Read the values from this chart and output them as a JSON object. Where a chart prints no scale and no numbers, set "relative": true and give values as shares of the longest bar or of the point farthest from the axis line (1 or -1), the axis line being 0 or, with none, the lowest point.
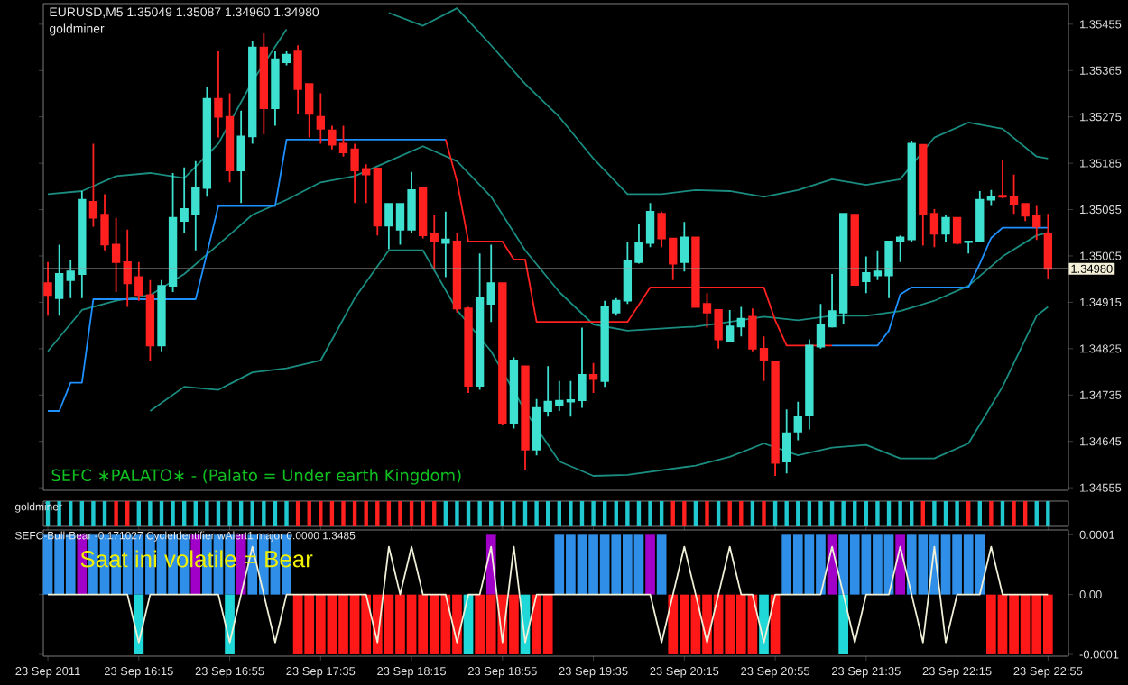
{
  "chart_data": [
    {
      "type": "candlestick",
      "title": "EURUSD,M5 1.35049 1.35087 1.34960 1.34980",
      "subtitle": "goldminer",
      "annotations": [
        "SEFC ∗PALATO∗ - (Palato = Under earth Kingdom)"
      ],
      "x": [
        "2011-09-23T15:35",
        "2011-09-23T15:40",
        "2011-09-23T15:45",
        "2011-09-23T15:50",
        "2011-09-23T15:55",
        "2011-09-23T16:00",
        "2011-09-23T16:05",
        "2011-09-23T16:10",
        "2011-09-23T16:15",
        "2011-09-23T16:20",
        "2011-09-23T16:25",
        "2011-09-23T16:30",
        "2011-09-23T16:35",
        "2011-09-23T16:40",
        "2011-09-23T16:45",
        "2011-09-23T16:50",
        "2011-09-23T16:55",
        "2011-09-23T17:00",
        "2011-09-23T17:05",
        "2011-09-23T17:10",
        "2011-09-23T17:15",
        "2011-09-23T17:20",
        "2011-09-23T17:25",
        "2011-09-23T17:30",
        "2011-09-23T17:35",
        "2011-09-23T17:40",
        "2011-09-23T17:45",
        "2011-09-23T17:50",
        "2011-09-23T17:55",
        "2011-09-23T18:00",
        "2011-09-23T18:05",
        "2011-09-23T18:10",
        "2011-09-23T18:15",
        "2011-09-23T18:20",
        "2011-09-23T18:25",
        "2011-09-23T18:30",
        "2011-09-23T18:35",
        "2011-09-23T18:40",
        "2011-09-23T18:45",
        "2011-09-23T18:50",
        "2011-09-23T18:55",
        "2011-09-23T19:00",
        "2011-09-23T19:05",
        "2011-09-23T19:10",
        "2011-09-23T19:15",
        "2011-09-23T19:20",
        "2011-09-23T19:25",
        "2011-09-23T19:30",
        "2011-09-23T19:35",
        "2011-09-23T19:40",
        "2011-09-23T19:45",
        "2011-09-23T19:50",
        "2011-09-23T19:55",
        "2011-09-23T20:00",
        "2011-09-23T20:05",
        "2011-09-23T20:10",
        "2011-09-23T20:15",
        "2011-09-23T20:20",
        "2011-09-23T20:25",
        "2011-09-23T20:30",
        "2011-09-23T20:35",
        "2011-09-23T20:40",
        "2011-09-23T20:45",
        "2011-09-23T20:50",
        "2011-09-23T20:55",
        "2011-09-23T21:00",
        "2011-09-23T21:05",
        "2011-09-23T21:10",
        "2011-09-23T21:15",
        "2011-09-23T21:20",
        "2011-09-23T21:25",
        "2011-09-23T21:30",
        "2011-09-23T21:35",
        "2011-09-23T21:40",
        "2011-09-23T21:45",
        "2011-09-23T21:50",
        "2011-09-23T21:55",
        "2011-09-23T22:00",
        "2011-09-23T22:05",
        "2011-09-23T22:10",
        "2011-09-23T22:15",
        "2011-09-23T22:20",
        "2011-09-23T22:25",
        "2011-09-23T22:30",
        "2011-09-23T22:35",
        "2011-09-23T22:40",
        "2011-09-23T22:45",
        "2011-09-23T22:50",
        "2011-09-23T22:55"
      ],
      "ohlc": [
        [
          1.34952,
          1.34993,
          1.34889,
          1.34929
        ],
        [
          1.34923,
          1.35027,
          1.34889,
          1.3497
        ],
        [
          1.34958,
          1.34998,
          1.34923,
          1.34975
        ],
        [
          1.3497,
          1.35131,
          1.34923,
          1.35114
        ],
        [
          1.3511,
          1.35223,
          1.35062,
          1.35079
        ],
        [
          1.35085,
          1.35125,
          1.35016,
          1.35027
        ],
        [
          1.35027,
          1.35079,
          1.34935,
          1.34993
        ],
        [
          1.34993,
          1.35056,
          1.34906,
          1.34952
        ],
        [
          1.34964,
          1.34993,
          1.34918,
          1.34929
        ],
        [
          1.34929,
          1.34958,
          1.34802,
          1.34831
        ],
        [
          1.34831,
          1.34958,
          1.3482,
          1.34947
        ],
        [
          1.34947,
          1.35166,
          1.34935,
          1.35079
        ],
        [
          1.35073,
          1.35177,
          1.3505,
          1.35096
        ],
        [
          1.35087,
          1.35189,
          1.35016,
          1.35137
        ],
        [
          1.35137,
          1.35333,
          1.3512,
          1.3531
        ],
        [
          1.3531,
          1.35402,
          1.35235,
          1.35275
        ],
        [
          1.35275,
          1.35321,
          1.35148,
          1.35171
        ],
        [
          1.35171,
          1.35287,
          1.35108,
          1.35237
        ],
        [
          1.35237,
          1.35422,
          1.35223,
          1.3541
        ],
        [
          1.3541,
          1.35437,
          1.35241,
          1.35292
        ],
        [
          1.35292,
          1.35402,
          1.35258,
          1.35387
        ],
        [
          1.35381,
          1.35402,
          1.35375,
          1.35396
        ],
        [
          1.35402,
          1.35414,
          1.35281,
          1.35329
        ],
        [
          1.35339,
          1.35339,
          1.35235,
          1.35281
        ],
        [
          1.35275,
          1.35321,
          1.35223,
          1.35252
        ],
        [
          1.35249,
          1.35258,
          1.35212,
          1.35221
        ],
        [
          1.35223,
          1.35258,
          1.35198,
          1.35206
        ],
        [
          1.35212,
          1.35223,
          1.35108,
          1.35171
        ],
        [
          1.35174,
          1.35183,
          1.35108,
          1.35163
        ],
        [
          1.35175,
          1.35177,
          1.35045,
          1.35064
        ],
        [
          1.35064,
          1.35108,
          1.35018,
          1.35106
        ],
        [
          1.35056,
          1.35108,
          1.35027,
          1.35106
        ],
        [
          1.35056,
          1.35168,
          1.3505,
          1.35133
        ],
        [
          1.35137,
          1.35137,
          1.35039,
          1.35045
        ],
        [
          1.35047,
          1.35085,
          1.34981,
          1.35033
        ],
        [
          1.3503,
          1.35091,
          1.34964,
          1.35037
        ],
        [
          1.35033,
          1.3505,
          1.34895,
          1.34903
        ],
        [
          1.34903,
          1.34906,
          1.34739,
          1.34753
        ],
        [
          1.34753,
          1.3501,
          1.34745,
          1.34923
        ],
        [
          1.34912,
          1.35027,
          1.34877,
          1.34952
        ],
        [
          1.34952,
          1.34952,
          1.34676,
          1.34681
        ],
        [
          1.34681,
          1.34808,
          1.3467,
          1.34802
        ],
        [
          1.34791,
          1.34791,
          1.34589,
          1.34629
        ],
        [
          1.34629,
          1.34727,
          1.34618,
          1.3471
        ],
        [
          1.34704,
          1.34791,
          1.34693,
          1.34722
        ],
        [
          1.34716,
          1.34762,
          1.34704,
          1.34724
        ],
        [
          1.34722,
          1.34762,
          1.34693,
          1.34725
        ],
        [
          1.34725,
          1.34866,
          1.3471,
          1.34774
        ],
        [
          1.34774,
          1.34797,
          1.34739,
          1.34766
        ],
        [
          1.34762,
          1.34918,
          1.34751,
          1.34906
        ],
        [
          1.34895,
          1.34923,
          1.34889,
          1.34918
        ],
        [
          1.34918,
          1.35033,
          1.34912,
          1.34995
        ],
        [
          1.34993,
          1.35068,
          1.3499,
          1.3503
        ],
        [
          1.3503,
          1.35108,
          1.35022,
          1.35091
        ],
        [
          1.35087,
          1.35091,
          1.35022,
          1.35039
        ],
        [
          1.35039,
          1.35039,
          1.34958,
          1.3499
        ],
        [
          1.34993,
          1.35071,
          1.34975,
          1.35041
        ],
        [
          1.35041,
          1.35041,
          1.34906,
          1.34906
        ],
        [
          1.34912,
          1.34933,
          1.34866,
          1.34895
        ],
        [
          1.349,
          1.349,
          1.34825,
          1.34843
        ],
        [
          1.3484,
          1.349,
          1.34837,
          1.34868
        ],
        [
          1.34868,
          1.34906,
          1.34849,
          1.34883
        ],
        [
          1.34887,
          1.34903,
          1.3482,
          1.34825
        ],
        [
          1.34825,
          1.34849,
          1.34762,
          1.34802
        ],
        [
          1.34799,
          1.34802,
          1.34578,
          1.34603
        ],
        [
          1.34606,
          1.34707,
          1.34583,
          1.34661
        ],
        [
          1.34664,
          1.34722,
          1.34647,
          1.34693
        ],
        [
          1.34695,
          1.34843,
          1.34668,
          1.34831
        ],
        [
          1.34829,
          1.34912,
          1.34825,
          1.34872
        ],
        [
          1.34868,
          1.3497,
          1.34866,
          1.34898
        ],
        [
          1.34895,
          1.35087,
          1.34872,
          1.35087
        ],
        [
          1.35085,
          1.35085,
          1.34949,
          1.34949
        ],
        [
          1.34956,
          1.35004,
          1.34933,
          1.34972
        ],
        [
          1.34967,
          1.35016,
          1.34958,
          1.34975
        ],
        [
          1.34967,
          1.35033,
          1.34923,
          1.35033
        ],
        [
          1.35033,
          1.35045,
          1.34993,
          1.35041
        ],
        [
          1.35037,
          1.35229,
          1.35033,
          1.35223
        ],
        [
          1.35221,
          1.35221,
          1.35025,
          1.35087
        ],
        [
          1.35087,
          1.35096,
          1.35022,
          1.35048
        ],
        [
          1.35048,
          1.35085,
          1.35033,
          1.35079
        ],
        [
          1.35079,
          1.35079,
          1.35027,
          1.3503
        ],
        [
          1.35032,
          1.35033,
          1.3501,
          1.35033
        ],
        [
          1.35033,
          1.35131,
          1.35033,
          1.35114
        ],
        [
          1.35114,
          1.35133,
          1.35102,
          1.3512
        ],
        [
          1.35122,
          1.35191,
          1.35117,
          1.3512
        ],
        [
          1.3512,
          1.35163,
          1.35087,
          1.35106
        ],
        [
          1.35106,
          1.35108,
          1.35073,
          1.35083
        ],
        [
          1.35083,
          1.35102,
          1.35036,
          1.35062
        ],
        [
          1.35049,
          1.35087,
          1.3496,
          1.3498
        ]
      ],
      "colors": [
        "#ff2020",
        "#3ee0d0",
        "#3ee0d0",
        "#3ee0d0",
        "#ff2020",
        "#ff2020",
        "#ff2020",
        "#ff2020",
        "#ff2020",
        "#ff2020",
        "#3ee0d0",
        "#3ee0d0",
        "#3ee0d0",
        "#3ee0d0",
        "#3ee0d0",
        "#ff2020",
        "#ff2020",
        "#3ee0d0",
        "#3ee0d0",
        "#ff2020",
        "#3ee0d0",
        "#3ee0d0",
        "#ff2020",
        "#ff2020",
        "#ff2020",
        "#ff2020",
        "#ff2020",
        "#ff2020",
        "#ff2020",
        "#ff2020",
        "#3ee0d0",
        "#3ee0d0",
        "#3ee0d0",
        "#ff2020",
        "#ff2020",
        "#3ee0d0",
        "#ff2020",
        "#ff2020",
        "#3ee0d0",
        "#3ee0d0",
        "#ff2020",
        "#3ee0d0",
        "#ff2020",
        "#3ee0d0",
        "#3ee0d0",
        "#3ee0d0",
        "#3ee0d0",
        "#3ee0d0",
        "#ff2020",
        "#3ee0d0",
        "#3ee0d0",
        "#3ee0d0",
        "#3ee0d0",
        "#3ee0d0",
        "#ff2020",
        "#ff2020",
        "#3ee0d0",
        "#ff2020",
        "#ff2020",
        "#ff2020",
        "#3ee0d0",
        "#3ee0d0",
        "#ff2020",
        "#ff2020",
        "#ff2020",
        "#3ee0d0",
        "#3ee0d0",
        "#3ee0d0",
        "#3ee0d0",
        "#3ee0d0",
        "#3ee0d0",
        "#ff2020",
        "#3ee0d0",
        "#3ee0d0",
        "#3ee0d0",
        "#3ee0d0",
        "#3ee0d0",
        "#ff2020",
        "#ff2020",
        "#3ee0d0",
        "#ff2020",
        "#3ee0d0",
        "#3ee0d0",
        "#3ee0d0",
        "#ff2020",
        "#ff2020",
        "#ff2020",
        "#ff2020",
        "#ff2020"
      ],
      "series": [
        {
          "type": "line",
          "color": "#1a8c80",
          "x": [
            "2011-09-23T15:35",
            "2011-09-23T15:50",
            "2011-09-23T16:05",
            "2011-09-23T16:20",
            "2011-09-23T16:35",
            "2011-09-23T16:50",
            "2011-09-23T17:05",
            "2011-09-23T17:20",
            "2011-09-23T17:35",
            "2011-09-23T17:50",
            "2011-09-23T18:05",
            "2011-09-23T18:20",
            "2011-09-23T18:35",
            "2011-09-23T18:50",
            "2011-09-23T19:05",
            "2011-09-23T19:20",
            "2011-09-23T19:35",
            "2011-09-23T19:50",
            "2011-09-23T20:05",
            "2011-09-23T20:20",
            "2011-09-23T20:35",
            "2011-09-23T20:50",
            "2011-09-23T21:05",
            "2011-09-23T21:20",
            "2011-09-23T21:35",
            "2011-09-23T21:50",
            "2011-09-23T22:05",
            "2011-09-23T22:20",
            "2011-09-23T22:35",
            "2011-09-23T22:50",
            "2011-09-23T22:55"
          ],
          "values": [
            1.35125,
            1.35131,
            1.3516,
            1.35166,
            1.35156,
            1.35223,
            1.35344,
            1.35445,
            null,
            null,
            1.35477,
            1.35452,
            1.35486,
            1.35414,
            1.35339,
            1.35275,
            1.35194,
            1.35125,
            1.35125,
            1.35133,
            1.35131,
            1.3512,
            1.35133,
            1.35154,
            1.35143,
            1.35154,
            1.35235,
            1.35264,
            1.35252,
            1.35198,
            1.35194
          ]
        },
        {
          "type": "line",
          "color": "#1a8c80",
          "x": [
            "2011-09-23T15:35",
            "2011-09-23T15:50",
            "2011-09-23T16:05",
            "2011-09-23T16:20",
            "2011-09-23T16:35",
            "2011-09-23T16:50",
            "2011-09-23T17:05",
            "2011-09-23T17:20",
            "2011-09-23T17:35",
            "2011-09-23T17:50",
            "2011-09-23T18:05",
            "2011-09-23T18:20",
            "2011-09-23T18:35",
            "2011-09-23T18:50",
            "2011-09-23T19:05",
            "2011-09-23T19:20",
            "2011-09-23T19:35",
            "2011-09-23T19:50",
            "2011-09-23T20:05",
            "2011-09-23T20:20",
            "2011-09-23T20:35",
            "2011-09-23T20:50",
            "2011-09-23T21:05",
            "2011-09-23T21:20",
            "2011-09-23T21:35",
            "2011-09-23T21:50",
            "2011-09-23T22:05",
            "2011-09-23T22:20",
            "2011-09-23T22:35",
            "2011-09-23T22:50",
            "2011-09-23T22:55"
          ],
          "values": [
            1.3482,
            1.349,
            1.34918,
            1.34929,
            1.3497,
            1.35027,
            1.35085,
            1.35114,
            1.35148,
            1.3516,
            1.35189,
            1.35218,
            1.35189,
            1.3512,
            1.35016,
            1.34935,
            1.34872,
            1.3486,
            1.34864,
            1.34868,
            1.34877,
            1.34887,
            1.3488,
            1.34889,
            1.34889,
            1.34898,
            1.34918,
            1.34947,
            1.35004,
            1.35045,
            1.3505
          ]
        },
        {
          "type": "line",
          "color": "#1a8c80",
          "x": [
            "2011-09-23T16:20",
            "2011-09-23T16:35",
            "2011-09-23T16:50",
            "2011-09-23T17:05",
            "2011-09-23T17:20",
            "2011-09-23T17:35",
            "2011-09-23T17:50",
            "2011-09-23T18:05",
            "2011-09-23T18:20",
            "2011-09-23T18:35",
            "2011-09-23T18:50",
            "2011-09-23T19:05",
            "2011-09-23T19:20",
            "2011-09-23T19:35",
            "2011-09-23T19:50",
            "2011-09-23T20:05",
            "2011-09-23T20:20",
            "2011-09-23T20:35",
            "2011-09-23T20:50",
            "2011-09-23T21:05",
            "2011-09-23T21:20",
            "2011-09-23T21:35",
            "2011-09-23T21:50",
            "2011-09-23T22:05",
            "2011-09-23T22:20",
            "2011-09-23T22:35",
            "2011-09-23T22:50",
            "2011-09-23T22:55"
          ],
          "values": [
            1.34704,
            1.34751,
            1.34745,
            1.34779,
            1.34787,
            1.34802,
            1.34923,
            1.35016,
            1.35016,
            1.349,
            1.3482,
            1.34704,
            1.34606,
            1.34578,
            1.3458,
            1.34589,
            1.34598,
            1.34615,
            1.34641,
            1.34618,
            1.34633,
            1.34638,
            1.34612,
            1.34612,
            1.34641,
            1.34751,
            1.34889,
            1.34906
          ]
        },
        {
          "type": "line",
          "color": "#1e90ff",
          "values": [
            1.34704,
            1.34704,
            1.34759,
            1.34759,
            1.34921,
            1.34921,
            1.34921,
            1.34921,
            1.34921,
            1.34921,
            1.34921,
            1.34921,
            1.34921,
            1.34921,
            1.3501,
            1.35102,
            1.35102,
            1.35102,
            1.35102,
            1.35102,
            1.35102,
            1.35231,
            1.35231,
            1.35231,
            1.35231,
            1.35231,
            1.35231,
            1.35231,
            1.35231,
            1.35231,
            1.35231,
            1.35231,
            1.35231,
            1.35231,
            1.35231,
            1.35231,
            null,
            null,
            null,
            null,
            null,
            null,
            null,
            null,
            null,
            null,
            null,
            null,
            null,
            null,
            null,
            null,
            null,
            null,
            null,
            null,
            null,
            null,
            null,
            null,
            null,
            null,
            null,
            null,
            null,
            null,
            null,
            null,
            null,
            1.34831,
            1.34831,
            1.34831,
            1.34831,
            1.34831,
            1.3486,
            1.3493,
            1.34944,
            1.34944,
            1.34944,
            1.34944,
            1.34944,
            1.34944,
            1.3499,
            1.3504,
            1.3506,
            1.3506,
            1.3506,
            1.3506,
            1.3506
          ]
        },
        {
          "type": "line",
          "color": "#ff2020",
          "values": [
            null,
            null,
            null,
            null,
            null,
            null,
            null,
            null,
            null,
            null,
            null,
            null,
            null,
            null,
            null,
            null,
            null,
            null,
            null,
            null,
            null,
            null,
            null,
            null,
            null,
            null,
            null,
            null,
            null,
            null,
            null,
            null,
            null,
            null,
            null,
            1.35231,
            1.3515,
            1.35033,
            1.35033,
            1.35033,
            1.35033,
            1.34998,
            1.34998,
            1.34877,
            1.34877,
            1.34877,
            1.34877,
            1.34877,
            1.34877,
            1.34877,
            1.34877,
            1.34877,
            1.3491,
            1.34944,
            1.34944,
            1.34944,
            1.34944,
            1.34944,
            1.34944,
            1.34944,
            1.34944,
            1.34944,
            1.34944,
            1.34944,
            1.3488,
            1.34831,
            1.34831,
            1.34831,
            1.34831,
            1.34831,
            null,
            null,
            null,
            null,
            null,
            null,
            null,
            null,
            null,
            null,
            null,
            null,
            null,
            null,
            null,
            null,
            null,
            null,
            null
          ]
        }
      ],
      "xlim": [
        "2011-09-23T15:33",
        "2011-09-23T23:04"
      ],
      "ylim": [
        1.3455,
        1.35495
      ],
      "yticks": [
        1.34555,
        1.34645,
        1.34735,
        1.34825,
        1.34915,
        1.35005,
        1.35095,
        1.35185,
        1.35275,
        1.35365,
        1.35455
      ],
      "ref_lines": [
        {
          "axis": "y",
          "value": 1.3498,
          "label": "1.34980",
          "color": "#a0a0a0"
        }
      ],
      "tick_labels": "y"
    },
    {
      "type": "bar",
      "title": "goldminer",
      "relative": true,
      "x": [
        "2011-09-23T15:35",
        "2011-09-23T15:40",
        "2011-09-23T15:45",
        "2011-09-23T15:50",
        "2011-09-23T15:55",
        "2011-09-23T16:00",
        "2011-09-23T16:05",
        "2011-09-23T16:10",
        "2011-09-23T16:15",
        "2011-09-23T16:20",
        "2011-09-23T16:25",
        "2011-09-23T16:30",
        "2011-09-23T16:35",
        "2011-09-23T16:40",
        "2011-09-23T16:45",
        "2011-09-23T16:50",
        "2011-09-23T16:55",
        "2011-09-23T17:00",
        "2011-09-23T17:05",
        "2011-09-23T17:10",
        "2011-09-23T17:15",
        "2011-09-23T17:20",
        "2011-09-23T17:25",
        "2011-09-23T17:30",
        "2011-09-23T17:35",
        "2011-09-23T17:40",
        "2011-09-23T17:45",
        "2011-09-23T17:50",
        "2011-09-23T17:55",
        "2011-09-23T18:00",
        "2011-09-23T18:05",
        "2011-09-23T18:10",
        "2011-09-23T18:15",
        "2011-09-23T18:20",
        "2011-09-23T18:25",
        "2011-09-23T18:30",
        "2011-09-23T18:35",
        "2011-09-23T18:40",
        "2011-09-23T18:45",
        "2011-09-23T18:50",
        "2011-09-23T18:55",
        "2011-09-23T19:00",
        "2011-09-23T19:05",
        "2011-09-23T19:10",
        "2011-09-23T19:15",
        "2011-09-23T19:20",
        "2011-09-23T19:25",
        "2011-09-23T19:30",
        "2011-09-23T19:35",
        "2011-09-23T19:40",
        "2011-09-23T19:45",
        "2011-09-23T19:50",
        "2011-09-23T19:55",
        "2011-09-23T20:00",
        "2011-09-23T20:05",
        "2011-09-23T20:10",
        "2011-09-23T20:15",
        "2011-09-23T20:20",
        "2011-09-23T20:25",
        "2011-09-23T20:30",
        "2011-09-23T20:35",
        "2011-09-23T20:40",
        "2011-09-23T20:45",
        "2011-09-23T20:50",
        "2011-09-23T20:55",
        "2011-09-23T21:00",
        "2011-09-23T21:05",
        "2011-09-23T21:10",
        "2011-09-23T21:15",
        "2011-09-23T21:20",
        "2011-09-23T21:25",
        "2011-09-23T21:30",
        "2011-09-23T21:35",
        "2011-09-23T21:40",
        "2011-09-23T21:45",
        "2011-09-23T21:50",
        "2011-09-23T21:55",
        "2011-09-23T22:00",
        "2011-09-23T22:05",
        "2011-09-23T22:10",
        "2011-09-23T22:15",
        "2011-09-23T22:20",
        "2011-09-23T22:25",
        "2011-09-23T22:30",
        "2011-09-23T22:35",
        "2011-09-23T22:40",
        "2011-09-23T22:45",
        "2011-09-23T22:50",
        "2011-09-23T22:55"
      ],
      "values": [
        1,
        1,
        1,
        1,
        1,
        1,
        1,
        1,
        1,
        1,
        1,
        1,
        1,
        1,
        1,
        1,
        1,
        1,
        1,
        1,
        1,
        1,
        1,
        1,
        1,
        1,
        1,
        1,
        1,
        1,
        1,
        1,
        1,
        1,
        1,
        1,
        1,
        1,
        1,
        1,
        1,
        1,
        1,
        1,
        1,
        1,
        1,
        1,
        1,
        1,
        1,
        1,
        1,
        1,
        1,
        1,
        1,
        1,
        1,
        1,
        1,
        1,
        1,
        1,
        1,
        1,
        1,
        1,
        1,
        1,
        1,
        1,
        1,
        1,
        1,
        1,
        1,
        1,
        1,
        1,
        1,
        1,
        1,
        1,
        1,
        1,
        1,
        1,
        1
      ],
      "colors": [
        "#20c8d0",
        "#20c8d0",
        "#20c8d0",
        "#20c8d0",
        "#20c8d0",
        "#20c8d0",
        "#ff2020",
        "#ff2020",
        "#20c8d0",
        "#20c8d0",
        "#20c8d0",
        "#20c8d0",
        "#20c8d0",
        "#20c8d0",
        "#20c8d0",
        "#20c8d0",
        "#20c8d0",
        "#20c8d0",
        "#20c8d0",
        "#20c8d0",
        "#20c8d0",
        "#20c8d0",
        "#ff2020",
        "#ff2020",
        "#ff2020",
        "#ff2020",
        "#ff2020",
        "#ff2020",
        "#ff2020",
        "#ff2020",
        "#ff2020",
        "#ff2020",
        "#ff2020",
        "#ff2020",
        "#ff2020",
        "#20c8d0",
        "#20c8d0",
        "#20c8d0",
        "#20c8d0",
        "#20c8d0",
        "#20c8d0",
        "#20c8d0",
        "#20c8d0",
        "#20c8d0",
        "#20c8d0",
        "#20c8d0",
        "#20c8d0",
        "#20c8d0",
        "#20c8d0",
        "#20c8d0",
        "#20c8d0",
        "#20c8d0",
        "#20c8d0",
        "#20c8d0",
        "#20c8d0",
        "#ff2020",
        "#ff2020",
        "#20c8d0",
        "#ff2020",
        "#20c8d0",
        "#ff2020",
        "#ff2020",
        "#20c8d0",
        "#ff2020",
        "#20c8d0",
        "#20c8d0",
        "#20c8d0",
        "#20c8d0",
        "#20c8d0",
        "#20c8d0",
        "#20c8d0",
        "#20c8d0",
        "#20c8d0",
        "#20c8d0",
        "#20c8d0",
        "#20c8d0",
        "#20c8d0",
        "#ff2020",
        "#20c8d0",
        "#20c8d0",
        "#20c8d0",
        "#ff2020",
        "#20c8d0",
        "#ff2020",
        "#20c8d0",
        "#ff2020",
        "#ff2020",
        "#20c8d0",
        "#20c8d0"
      ],
      "xlim": [
        "2011-09-23T15:33",
        "2011-09-23T23:04"
      ],
      "tick_labels": false
    },
    {
      "type": "bar",
      "title": "SEFC-Bull-Bear -0.171027 CycleIdentifier wAlert1 major 0.0000 1.3485",
      "annotations": [
        "Saat ini volatile = Bear"
      ],
      "x": [
        "2011-09-23T15:35",
        "2011-09-23T15:40",
        "2011-09-23T15:45",
        "2011-09-23T15:50",
        "2011-09-23T15:55",
        "2011-09-23T16:00",
        "2011-09-23T16:05",
        "2011-09-23T16:10",
        "2011-09-23T16:15",
        "2011-09-23T16:20",
        "2011-09-23T16:25",
        "2011-09-23T16:30",
        "2011-09-23T16:35",
        "2011-09-23T16:40",
        "2011-09-23T16:45",
        "2011-09-23T16:50",
        "2011-09-23T16:55",
        "2011-09-23T17:00",
        "2011-09-23T17:05",
        "2011-09-23T17:10",
        "2011-09-23T17:15",
        "2011-09-23T17:20",
        "2011-09-23T17:25",
        "2011-09-23T17:30",
        "2011-09-23T17:35",
        "2011-09-23T17:40",
        "2011-09-23T17:45",
        "2011-09-23T17:50",
        "2011-09-23T17:55",
        "2011-09-23T18:00",
        "2011-09-23T18:05",
        "2011-09-23T18:10",
        "2011-09-23T18:15",
        "2011-09-23T18:20",
        "2011-09-23T18:25",
        "2011-09-23T18:30",
        "2011-09-23T18:35",
        "2011-09-23T18:40",
        "2011-09-23T18:45",
        "2011-09-23T18:50",
        "2011-09-23T18:55",
        "2011-09-23T19:00",
        "2011-09-23T19:05",
        "2011-09-23T19:10",
        "2011-09-23T19:15",
        "2011-09-23T19:20",
        "2011-09-23T19:25",
        "2011-09-23T19:30",
        "2011-09-23T19:35",
        "2011-09-23T19:40",
        "2011-09-23T19:45",
        "2011-09-23T19:50",
        "2011-09-23T19:55",
        "2011-09-23T20:00",
        "2011-09-23T20:05",
        "2011-09-23T20:10",
        "2011-09-23T20:15",
        "2011-09-23T20:20",
        "2011-09-23T20:25",
        "2011-09-23T20:30",
        "2011-09-23T20:35",
        "2011-09-23T20:40",
        "2011-09-23T20:45",
        "2011-09-23T20:50",
        "2011-09-23T20:55",
        "2011-09-23T21:00",
        "2011-09-23T21:05",
        "2011-09-23T21:10",
        "2011-09-23T21:15",
        "2011-09-23T21:20",
        "2011-09-23T21:25",
        "2011-09-23T21:30",
        "2011-09-23T21:35",
        "2011-09-23T21:40",
        "2011-09-23T21:45",
        "2011-09-23T21:50",
        "2011-09-23T21:55",
        "2011-09-23T22:00",
        "2011-09-23T22:05",
        "2011-09-23T22:10",
        "2011-09-23T22:15",
        "2011-09-23T22:20",
        "2011-09-23T22:25",
        "2011-09-23T22:30",
        "2011-09-23T22:35",
        "2011-09-23T22:40",
        "2011-09-23T22:45",
        "2011-09-23T22:50",
        "2011-09-23T22:55"
      ],
      "series": [
        {
          "type": "bar",
          "color": "#2f8fe8",
          "x": [
            "2011-09-23T15:35",
            "2011-09-23T15:40",
            "2011-09-23T15:45",
            "2011-09-23T15:55",
            "2011-09-23T16:00",
            "2011-09-23T16:05",
            "2011-09-23T16:10",
            "2011-09-23T16:15",
            "2011-09-23T16:20",
            "2011-09-23T16:25",
            "2011-09-23T16:30",
            "2011-09-23T16:35",
            "2011-09-23T16:45",
            "2011-09-23T16:50",
            "2011-09-23T16:55",
            "2011-09-23T17:05",
            "2011-09-23T17:10",
            "2011-09-23T17:15",
            "2011-09-23T17:20",
            "2011-09-23T19:20",
            "2011-09-23T19:25",
            "2011-09-23T19:30",
            "2011-09-23T19:35",
            "2011-09-23T19:40",
            "2011-09-23T19:45",
            "2011-09-23T19:50",
            "2011-09-23T19:55",
            "2011-09-23T20:05",
            "2011-09-23T21:00",
            "2011-09-23T21:05",
            "2011-09-23T21:10",
            "2011-09-23T21:15",
            "2011-09-23T21:25",
            "2011-09-23T21:30",
            "2011-09-23T21:35",
            "2011-09-23T21:40",
            "2011-09-23T21:45",
            "2011-09-23T21:55",
            "2011-09-23T22:00",
            "2011-09-23T22:05",
            "2011-09-23T22:10",
            "2011-09-23T22:15",
            "2011-09-23T22:20",
            "2011-09-23T22:25"
          ],
          "values": [
            0.0001,
            0.0001,
            0.0001,
            0.0001,
            0.0001,
            0.0001,
            0.0001,
            0.0001,
            0.0001,
            0.0001,
            0.0001,
            0.0001,
            0.0001,
            0.0001,
            0.0001,
            0.0001,
            0.0001,
            0.0001,
            0.0001,
            0.0001,
            0.0001,
            0.0001,
            0.0001,
            0.0001,
            0.0001,
            0.0001,
            0.0001,
            0.0001,
            0.0001,
            0.0001,
            0.0001,
            0.0001,
            0.0001,
            0.0001,
            0.0001,
            0.0001,
            0.0001,
            0.0001,
            0.0001,
            0.0001,
            0.0001,
            0.0001,
            0.0001,
            0.0001
          ]
        },
        {
          "type": "bar",
          "color": "#a000c8",
          "x": [
            "2011-09-23T15:50",
            "2011-09-23T16:40",
            "2011-09-23T17:00",
            "2011-09-23T18:50",
            "2011-09-23T20:00",
            "2011-09-23T21:20",
            "2011-09-23T21:50"
          ],
          "values": [
            0.0001,
            0.0001,
            0.0001,
            0.0001,
            0.0001,
            0.0001,
            0.0001
          ]
        },
        {
          "type": "bar",
          "color": "#ff1818",
          "x": [
            "2011-09-23T17:25",
            "2011-09-23T17:30",
            "2011-09-23T17:35",
            "2011-09-23T17:40",
            "2011-09-23T17:45",
            "2011-09-23T17:50",
            "2011-09-23T17:55",
            "2011-09-23T18:00",
            "2011-09-23T18:05",
            "2011-09-23T18:10",
            "2011-09-23T18:15",
            "2011-09-23T18:20",
            "2011-09-23T18:25",
            "2011-09-23T18:30",
            "2011-09-23T18:35",
            "2011-09-23T18:45",
            "2011-09-23T18:50",
            "2011-09-23T18:55",
            "2011-09-23T19:00",
            "2011-09-23T19:10",
            "2011-09-23T19:15",
            "2011-09-23T20:10",
            "2011-09-23T20:15",
            "2011-09-23T20:20",
            "2011-09-23T20:25",
            "2011-09-23T20:30",
            "2011-09-23T20:35",
            "2011-09-23T20:40",
            "2011-09-23T20:45",
            "2011-09-23T20:55",
            "2011-09-23T22:30",
            "2011-09-23T22:35",
            "2011-09-23T22:40",
            "2011-09-23T22:45",
            "2011-09-23T22:50",
            "2011-09-23T22:55"
          ],
          "values": [
            -0.0001,
            -0.0001,
            -0.0001,
            -0.0001,
            -0.0001,
            -0.0001,
            -0.0001,
            -0.0001,
            -0.0001,
            -0.0001,
            -0.0001,
            -0.0001,
            -0.0001,
            -0.0001,
            -0.0001,
            -0.0001,
            -0.0001,
            -0.0001,
            -0.0001,
            -0.0001,
            -0.0001,
            -0.0001,
            -0.0001,
            -0.0001,
            -0.0001,
            -0.0001,
            -0.0001,
            -0.0001,
            -0.0001,
            -0.0001,
            -0.0001,
            -0.0001,
            -0.0001,
            -0.0001,
            -0.0001,
            -0.0001
          ]
        },
        {
          "type": "bar",
          "color": "#20d8d8",
          "x": [
            "2011-09-23T16:15",
            "2011-09-23T16:55",
            "2011-09-23T18:40",
            "2011-09-23T19:05",
            "2011-09-23T20:50",
            "2011-09-23T21:25"
          ],
          "values": [
            -0.0001,
            -0.0001,
            -0.0001,
            -0.0001,
            -0.0001,
            -0.0001
          ]
        },
        {
          "type": "line",
          "color": "#f0f0d8",
          "values": [
            0,
            0,
            0,
            0,
            0,
            0,
            0,
            0,
            -8e-05,
            0,
            0,
            0,
            0,
            0,
            0,
            0,
            -8e-05,
            0,
            8e-05,
            0,
            -8e-05,
            0,
            0,
            0,
            0,
            0,
            0,
            0,
            0,
            -8e-05,
            8e-05,
            0,
            8e-05,
            0,
            0,
            0,
            -8e-05,
            0,
            0,
            8e-05,
            -8e-05,
            8e-05,
            -8e-05,
            0,
            0,
            0,
            0,
            0,
            0,
            0,
            0,
            0,
            0,
            0,
            -8e-05,
            0,
            8e-05,
            0,
            -8e-05,
            0,
            8e-05,
            0,
            0,
            -8e-05,
            0,
            0,
            0,
            0,
            0,
            8e-05,
            0,
            -8e-05,
            0,
            0,
            0,
            8e-05,
            0,
            -8e-05,
            8e-05,
            -8e-05,
            0,
            0,
            0,
            8e-05,
            0,
            0,
            0,
            0,
            0
          ]
        }
      ],
      "xlim": [
        "2011-09-23T15:33",
        "2011-09-23T23:04"
      ],
      "ylim": [
        -0.000103,
        0.000108
      ],
      "xticks": [
        {
          "value": "2011-09-23T15:35",
          "label": "23 Sep 2011"
        },
        {
          "value": "2011-09-23T16:15",
          "label": "23 Sep 16:15"
        },
        {
          "value": "2011-09-23T16:55",
          "label": "23 Sep 16:55"
        },
        {
          "value": "2011-09-23T17:35",
          "label": "23 Sep 17:35"
        },
        {
          "value": "2011-09-23T18:15",
          "label": "23 Sep 18:15"
        },
        {
          "value": "2011-09-23T18:55",
          "label": "23 Sep 18:55"
        },
        {
          "value": "2011-09-23T19:35",
          "label": "23 Sep 19:35"
        },
        {
          "value": "2011-09-23T20:15",
          "label": "23 Sep 20:15"
        },
        {
          "value": "2011-09-23T20:55",
          "label": "23 Sep 20:55"
        },
        {
          "value": "2011-09-23T21:35",
          "label": "23 Sep 21:35"
        },
        {
          "value": "2011-09-23T22:15",
          "label": "23 Sep 22:15"
        },
        {
          "value": "2011-09-23T22:55",
          "label": "23 Sep 22:55"
        }
      ],
      "yticks": [
        {
          "value": 0.0001,
          "label": "0.0001"
        },
        {
          "value": 0,
          "label": "0.00"
        },
        {
          "value": -0.0001,
          "label": "-0.0001"
        }
      ]
    }
  ]
}
